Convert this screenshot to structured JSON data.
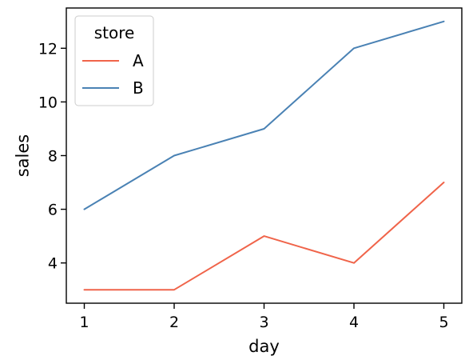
{
  "chart_data": {
    "type": "line",
    "xlabel": "day",
    "ylabel": "sales",
    "x": [
      1,
      2,
      3,
      4,
      5
    ],
    "xticks": [
      "1",
      "2",
      "3",
      "4",
      "5"
    ],
    "yticks": [
      "4",
      "6",
      "8",
      "10",
      "12"
    ],
    "xlim": [
      0.8,
      5.2
    ],
    "ylim": [
      2.5,
      13.5
    ],
    "legend": {
      "title": "store",
      "placement": "top-left"
    },
    "grid": false,
    "series": [
      {
        "name": "A",
        "color": "#f0644a",
        "values": [
          3,
          3,
          5,
          4,
          7
        ]
      },
      {
        "name": "B",
        "color": "#4a82b4",
        "values": [
          6,
          8,
          9,
          12,
          13
        ]
      }
    ]
  }
}
